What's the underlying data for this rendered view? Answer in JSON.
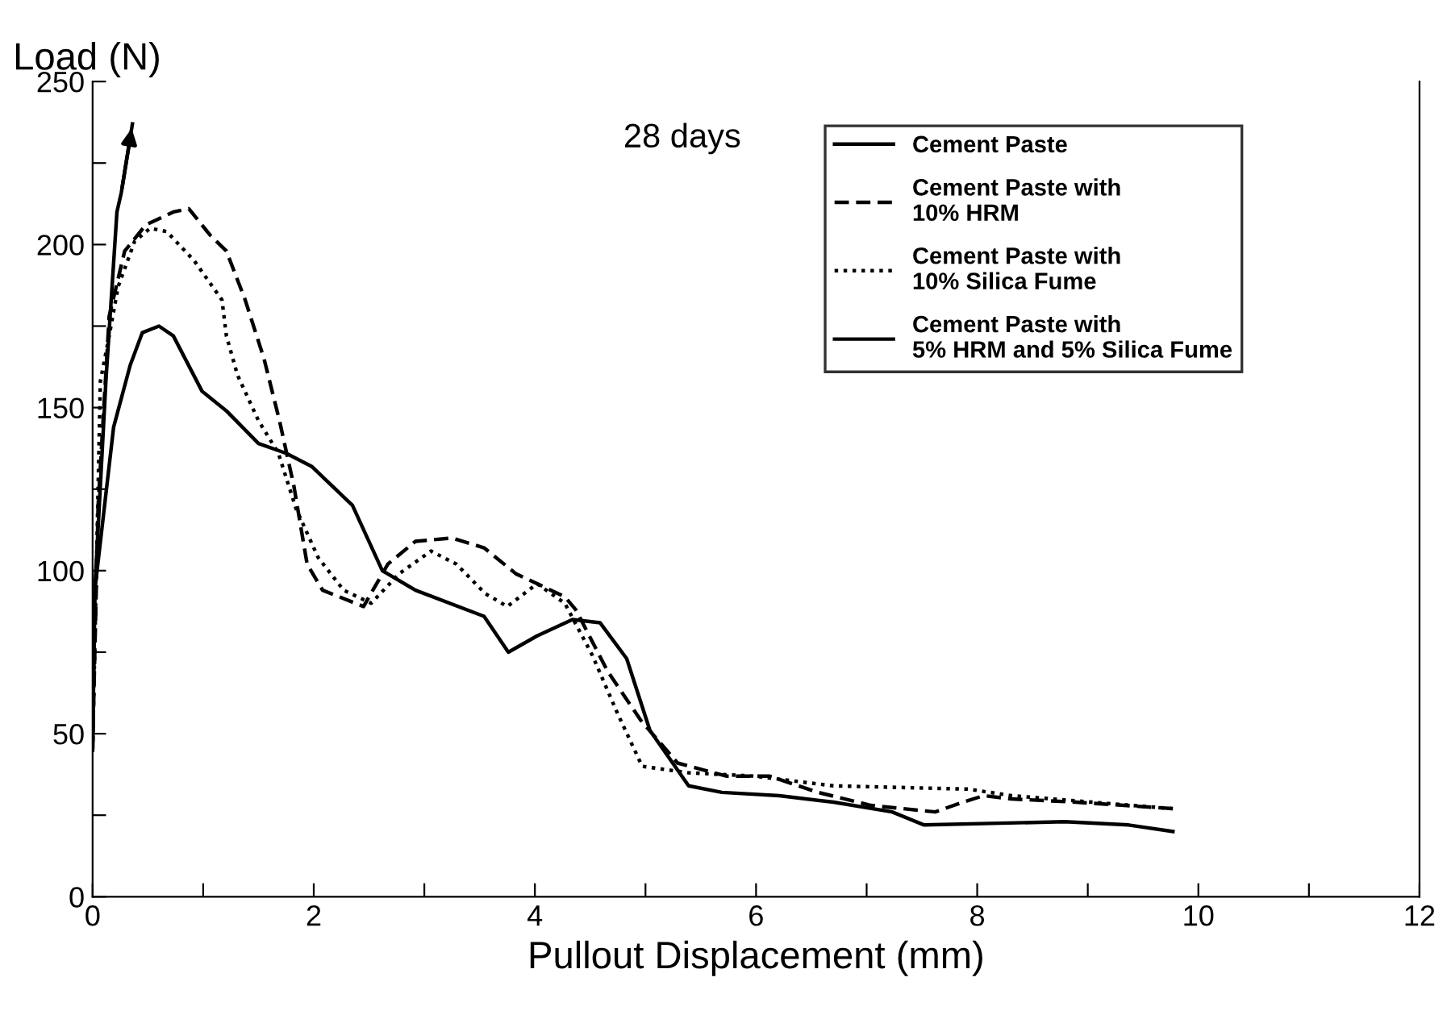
{
  "chart_data": {
    "type": "line",
    "xlabel": "Pullout Displacement (mm)",
    "ylabel": "Load (N)",
    "annotations": [
      "28 days"
    ],
    "xlim": [
      0,
      12
    ],
    "ylim": [
      0,
      250
    ],
    "xticks": [
      0,
      {
        "value": 1,
        "label": null
      },
      2,
      {
        "value": 3,
        "label": null
      },
      4,
      {
        "value": 5,
        "label": null
      },
      6,
      {
        "value": 7,
        "label": null
      },
      8,
      {
        "value": 9,
        "label": null
      },
      10,
      {
        "value": 11,
        "label": null
      },
      12
    ],
    "yticks": [
      0,
      {
        "value": 25,
        "label": null
      },
      50,
      {
        "value": 75,
        "label": null
      },
      100,
      {
        "value": 125,
        "label": null
      },
      150,
      {
        "value": 175,
        "label": null
      },
      200,
      {
        "value": 225,
        "label": null
      },
      250
    ],
    "grid": false,
    "legend": "top right",
    "marker": "none",
    "series": [
      {
        "name": "Cement Paste",
        "color": "#000000",
        "line_style": "solid",
        "x": [
          0,
          0.02,
          0.19,
          0.34,
          0.45,
          0.6,
          0.73,
          0.99,
          1.21,
          1.5,
          1.75,
          1.98,
          2.35,
          2.62,
          2.92,
          3.54,
          3.76,
          4.02,
          4.34,
          4.59,
          4.83,
          5.04,
          5.39,
          5.69,
          6.21,
          6.7,
          7.23,
          7.52,
          8.79,
          9.37,
          9.77
        ],
        "values": [
          45,
          94,
          144,
          163,
          173,
          175,
          172,
          155,
          149,
          139,
          136,
          132,
          120,
          100,
          94,
          86,
          75,
          80,
          85,
          84,
          73,
          51,
          34,
          32,
          31,
          29,
          26,
          22,
          23,
          22,
          20
        ]
      },
      {
        "name": "Cement Paste with\n10% HRM",
        "color": "#000000",
        "line_style": "dashed",
        "x": [
          0,
          0.05,
          0.15,
          0.29,
          0.48,
          0.73,
          0.87,
          1.06,
          1.21,
          1.38,
          1.55,
          1.69,
          1.82,
          1.94,
          2.08,
          2.45,
          2.67,
          2.92,
          3.25,
          3.54,
          3.83,
          4.02,
          4.27,
          4.37,
          4.66,
          4.96,
          5.29,
          5.73,
          6.12,
          6.56,
          7.04,
          7.62,
          7.87,
          8.06,
          8.31,
          8.89,
          9.77
        ],
        "values": [
          45,
          120,
          178,
          198,
          206,
          210,
          211,
          203,
          198,
          183,
          165,
          146,
          126,
          102,
          94,
          89,
          102,
          109,
          110,
          107,
          99,
          96,
          92,
          88,
          69,
          54,
          41,
          37,
          37,
          32,
          28,
          26,
          29,
          31,
          30,
          29,
          27
        ]
      },
      {
        "name": "Cement Paste with\n10% Silica Fume",
        "color": "#000000",
        "line_style": "dotted",
        "x": [
          0,
          0.07,
          0.15,
          0.23,
          0.38,
          0.52,
          0.67,
          0.92,
          1.17,
          1.21,
          1.31,
          1.5,
          1.68,
          1.84,
          2.04,
          2.27,
          2.52,
          2.77,
          3.06,
          3.29,
          3.55,
          3.75,
          4.02,
          4.27,
          4.52,
          4.75,
          4.97,
          5.39,
          5.98,
          6.7,
          7.92,
          8.31,
          9.04,
          9.77
        ],
        "values": [
          45,
          158,
          172,
          187,
          201,
          205,
          204,
          195,
          183,
          172,
          160,
          146,
          136,
          119,
          104,
          94,
          90,
          99,
          106,
          102,
          93,
          89,
          96,
          90,
          74,
          56,
          40,
          38,
          37,
          34,
          33,
          31,
          29,
          27
        ]
      },
      {
        "name": "Cement Paste with\n5% HRM and 5% Silica Fume",
        "color": "#000000",
        "line_style": "solid",
        "x": [
          0,
          0.02,
          0.12,
          0.22,
          0.26,
          0.36
        ],
        "values": [
          45,
          94,
          158,
          210,
          216,
          237
        ]
      }
    ]
  }
}
